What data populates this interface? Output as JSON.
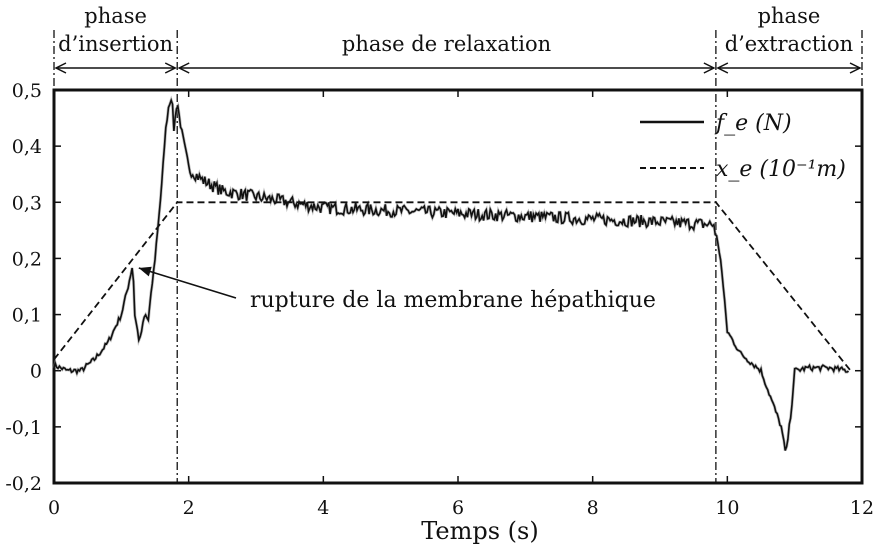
{
  "chart_data": {
    "type": "line",
    "title": "",
    "xlabel": "Temps (s)",
    "ylabel": "",
    "xlim": [
      0,
      12
    ],
    "ylim": [
      -0.2,
      0.5
    ],
    "x_ticks": [
      "0",
      "2",
      "4",
      "6",
      "8",
      "10",
      "12"
    ],
    "y_ticks": [
      "0,5",
      "0,4",
      "0,3",
      "0,2",
      "0,1",
      "0",
      "-0,1",
      "-0,2"
    ],
    "grid": false,
    "legend_position": "top-right",
    "phase_boundaries": [
      1.83,
      9.83
    ],
    "phases": [
      {
        "line1": "phase",
        "line2": "d’insertion"
      },
      {
        "line1": "",
        "line2": "phase de relaxation"
      },
      {
        "line1": "phase",
        "line2": "d’extraction"
      }
    ],
    "annotation": {
      "text": "rupture de la membrane hépathique",
      "x": 1.2,
      "y": 0.19
    },
    "series": [
      {
        "name": "f_e (N)",
        "style": "solid",
        "x": [
          0,
          0.2,
          0.4,
          0.6,
          0.8,
          1.0,
          1.1,
          1.17,
          1.2,
          1.27,
          1.3,
          1.35,
          1.4,
          1.5,
          1.6,
          1.65,
          1.7,
          1.75,
          1.78,
          1.83,
          1.9,
          2.0,
          2.2,
          2.5,
          3.0,
          3.5,
          4.0,
          5.0,
          6.0,
          7.0,
          8.0,
          9.0,
          9.8,
          9.9,
          10.0,
          10.2,
          10.5,
          10.8,
          10.87,
          10.95,
          11.0,
          11.2,
          11.5,
          11.8
        ],
        "y": [
          0.01,
          0.0,
          0.0,
          0.02,
          0.05,
          0.1,
          0.15,
          0.19,
          0.1,
          0.05,
          0.07,
          0.1,
          0.09,
          0.2,
          0.33,
          0.42,
          0.47,
          0.49,
          0.43,
          0.48,
          0.42,
          0.36,
          0.34,
          0.32,
          0.31,
          0.3,
          0.29,
          0.285,
          0.28,
          0.275,
          0.27,
          0.265,
          0.26,
          0.2,
          0.07,
          0.03,
          0.0,
          -0.1,
          -0.15,
          -0.07,
          0.0,
          0.005,
          0.005,
          0.0
        ]
      },
      {
        "name": "x_e (10⁻¹m)",
        "style": "dashed",
        "x": [
          0,
          1.83,
          9.83,
          11.83
        ],
        "y": [
          0.02,
          0.3,
          0.3,
          0.0
        ]
      }
    ]
  }
}
